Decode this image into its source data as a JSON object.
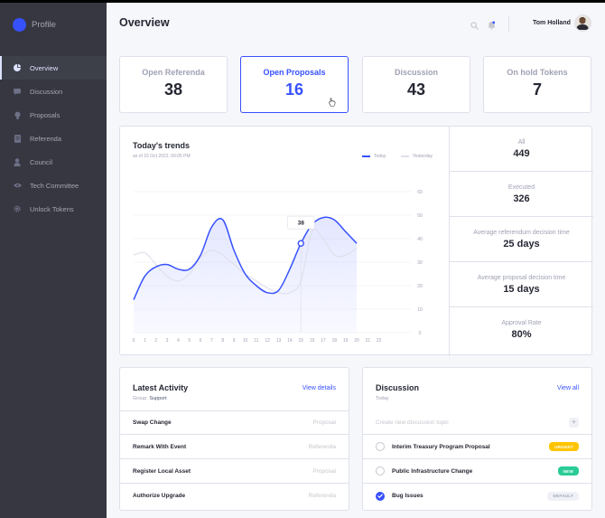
{
  "sidebar": {
    "brand": "Profile",
    "items": [
      {
        "label": "Overview",
        "icon": "pie-chart-icon",
        "active": true
      },
      {
        "label": "Discussion",
        "icon": "comment-icon",
        "active": false
      },
      {
        "label": "Proposals",
        "icon": "lightbulb-icon",
        "active": false
      },
      {
        "label": "Referenda",
        "icon": "document-icon",
        "active": false
      },
      {
        "label": "Council",
        "icon": "user-icon",
        "active": false
      },
      {
        "label": "Tech Committee",
        "icon": "eye-icon",
        "active": false
      },
      {
        "label": "Unlock Tokens",
        "icon": "gear-icon",
        "active": false
      }
    ]
  },
  "header": {
    "title": "Overview",
    "user_name": "Tom Holland"
  },
  "stats": [
    {
      "label": "Open Referenda",
      "value": "38"
    },
    {
      "label": "Open Proposals",
      "value": "16"
    },
    {
      "label": "Discussion",
      "value": "43"
    },
    {
      "label": "On hold Tokens",
      "value": "7"
    }
  ],
  "trends": {
    "title": "Today's trends",
    "subtitle": "as of 15 Oct 2022, 09:05 PM",
    "legend_today": "Today",
    "legend_yesterday": "Yesterday",
    "tooltip": "38",
    "side_stats": [
      {
        "label": "All",
        "value": "449"
      },
      {
        "label": "Executed",
        "value": "326"
      },
      {
        "label": "Average referendum decision time",
        "value": "25 days"
      },
      {
        "label": "Average proposal decision time",
        "value": "15 days"
      },
      {
        "label": "Approval Rate",
        "value": "80%"
      }
    ]
  },
  "chart_data": {
    "type": "line",
    "x": [
      0,
      1,
      2,
      3,
      4,
      5,
      6,
      7,
      8,
      9,
      10,
      11,
      12,
      13,
      14,
      15,
      16,
      17,
      18,
      19,
      20,
      21,
      22
    ],
    "yticks": [
      0,
      10,
      20,
      30,
      40,
      50,
      60
    ],
    "ylim": [
      0,
      60
    ],
    "series": [
      {
        "name": "Today",
        "color": "#3751ff",
        "points": [
          [
            0,
            14
          ],
          [
            1,
            24
          ],
          [
            2,
            28
          ],
          [
            3,
            29
          ],
          [
            4,
            27
          ],
          [
            5,
            27
          ],
          [
            6,
            33
          ],
          [
            7,
            45
          ],
          [
            8,
            48
          ],
          [
            9,
            35
          ],
          [
            10,
            25
          ],
          [
            11,
            20
          ],
          [
            12,
            17
          ],
          [
            13,
            18
          ],
          [
            14,
            27
          ],
          [
            15,
            38
          ],
          [
            16,
            46
          ],
          [
            17,
            49
          ],
          [
            18,
            48
          ],
          [
            19,
            43
          ],
          [
            20,
            38
          ]
        ]
      },
      {
        "name": "Yesterday",
        "color": "#dfe0eb",
        "points": [
          [
            0,
            33
          ],
          [
            1,
            34
          ],
          [
            2,
            29
          ],
          [
            3,
            24
          ],
          [
            4,
            22
          ],
          [
            5,
            25
          ],
          [
            6,
            32
          ],
          [
            7,
            35
          ],
          [
            8,
            33
          ],
          [
            9,
            29
          ],
          [
            10,
            25
          ],
          [
            11,
            22
          ],
          [
            12,
            19
          ],
          [
            13,
            17
          ],
          [
            14,
            17
          ],
          [
            15,
            22
          ],
          [
            16,
            43
          ],
          [
            17,
            40
          ],
          [
            18,
            33
          ],
          [
            19,
            33
          ],
          [
            20,
            36
          ]
        ]
      }
    ],
    "highlight": {
      "series": "Today",
      "x": 15,
      "label": "38"
    }
  },
  "activity": {
    "title": "Latest Activity",
    "link": "View details",
    "sub_prefix": "Group:",
    "sub_value": "Support",
    "rows": [
      {
        "label": "Swap Change",
        "value": "Proposal"
      },
      {
        "label": "Remark With Event",
        "value": "Referenda"
      },
      {
        "label": "Register Local Asset",
        "value": "Proposal"
      },
      {
        "label": "Authorize Upgrade",
        "value": "Referenda"
      }
    ]
  },
  "discussion": {
    "title": "Discussion",
    "link": "View all",
    "subtitle": "Today",
    "placeholder": "Create new discussion topic",
    "items": [
      {
        "label": "Interim Treasury Program Proposal",
        "badge": "URGENT",
        "badge_type": "urgent",
        "checked": false
      },
      {
        "label": "Public Infrastructure Change",
        "badge": "NEW",
        "badge_type": "new",
        "checked": false
      },
      {
        "label": "Bug Issues",
        "badge": "DEFAULT",
        "badge_type": "default",
        "checked": true
      }
    ]
  },
  "colors": {
    "accent": "#3751ff",
    "sidebar": "#363740",
    "urgent": "#fec400",
    "new": "#29cc97"
  }
}
